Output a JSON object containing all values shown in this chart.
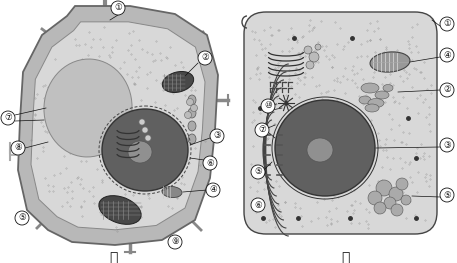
{
  "background_color": "#ffffff",
  "fig_width": 4.57,
  "fig_height": 2.63,
  "dpi": 100,
  "label_left": "甲",
  "label_right": "乙"
}
